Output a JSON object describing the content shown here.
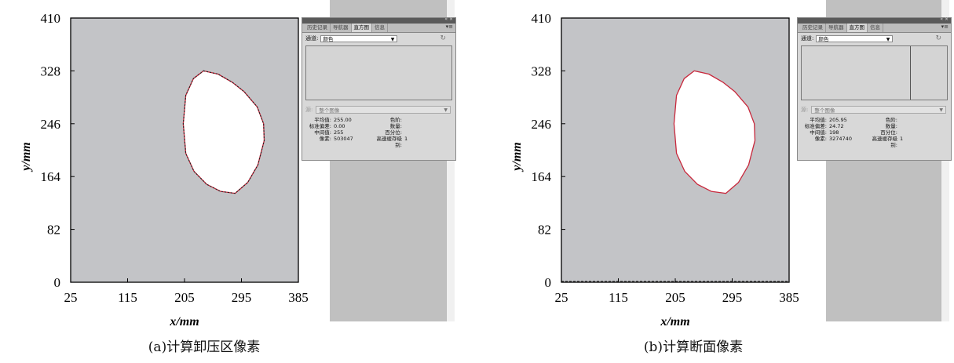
{
  "chart_data": [
    {
      "type": "scatter",
      "xlabel": "x/mm",
      "ylabel": "y/mm",
      "x_ticks": [
        "25",
        "115",
        "205",
        "295",
        "385"
      ],
      "y_ticks": [
        "0",
        "82",
        "164",
        "246",
        "328",
        "410"
      ],
      "xlim": [
        25,
        385
      ],
      "ylim": [
        0,
        410
      ],
      "caption": "(a)计算卸压区像素",
      "series": [
        {
          "x": [
            235,
            258,
            281,
            299,
            320,
            330,
            331,
            321,
            305,
            285,
            262,
            240,
            220,
            207,
            203,
            207,
            219,
            235
          ],
          "y": [
            328,
            323,
            310,
            296,
            272,
            246,
            220,
            182,
            155,
            138,
            141,
            152,
            172,
            200,
            246,
            290,
            316,
            328
          ]
        }
      ],
      "histogram_panel": {
        "tabs": [
          "历史记录",
          "导航器",
          "直方图",
          "信息"
        ],
        "active_tab": "直方图",
        "channel_label": "通道:",
        "channel_value": "颜色",
        "source_label": "源:",
        "source_value": "整个图像",
        "stats": [
          {
            "k": "平均值:",
            "v": "255.00",
            "k2": "色阶:",
            "v2": ""
          },
          {
            "k": "标准偏差:",
            "v": "0.00",
            "k2": "数量:",
            "v2": ""
          },
          {
            "k": "中间值:",
            "v": "255",
            "k2": "百分位:",
            "v2": ""
          },
          {
            "k": "像素:",
            "v": "503047",
            "k2": "高速缓存级别:",
            "v2": "1"
          }
        ]
      }
    },
    {
      "type": "scatter",
      "xlabel": "x/mm",
      "ylabel": "y/mm",
      "x_ticks": [
        "25",
        "115",
        "205",
        "295",
        "385"
      ],
      "y_ticks": [
        "0",
        "82",
        "164",
        "246",
        "328",
        "410"
      ],
      "xlim": [
        25,
        385
      ],
      "ylim": [
        0,
        410
      ],
      "caption": "(b)计算断面像素",
      "series": [
        {
          "x": [
            235,
            258,
            281,
            299,
            320,
            330,
            331,
            321,
            305,
            285,
            262,
            240,
            220,
            207,
            203,
            207,
            219,
            235
          ],
          "y": [
            328,
            323,
            310,
            296,
            272,
            246,
            220,
            182,
            155,
            138,
            141,
            152,
            172,
            200,
            246,
            290,
            316,
            328
          ]
        }
      ],
      "histogram_panel": {
        "tabs": [
          "历史记录",
          "导航器",
          "直方图",
          "信息"
        ],
        "active_tab": "直方图",
        "channel_label": "通道:",
        "channel_value": "颜色",
        "source_label": "源:",
        "source_value": "整个图像",
        "stats": [
          {
            "k": "平均值:",
            "v": "205.95",
            "k2": "色阶:",
            "v2": ""
          },
          {
            "k": "标准偏差:",
            "v": "24.72",
            "k2": "数量:",
            "v2": ""
          },
          {
            "k": "中间值:",
            "v": "198",
            "k2": "百分位:",
            "v2": ""
          },
          {
            "k": "像素:",
            "v": "3274740",
            "k2": "高速缓存级别:",
            "v2": "1"
          }
        ]
      }
    }
  ],
  "colors": {
    "plot_background": "#c3c4c7",
    "shape_fill": "#ffffff",
    "outline": "#c8283c",
    "selection_dash": "#222222"
  }
}
